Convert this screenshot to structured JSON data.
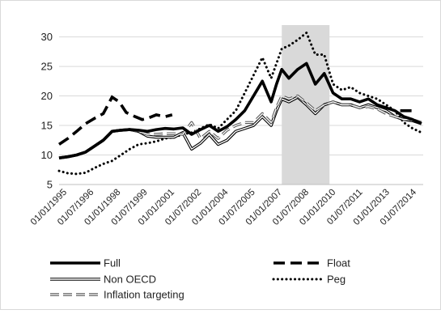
{
  "chart_data": {
    "type": "line",
    "ylim": [
      5,
      32
    ],
    "yticks": [
      5,
      10,
      15,
      20,
      25,
      30
    ],
    "x_tick_labels": [
      "01/01/1995",
      "01/07/1996",
      "01/01/1998",
      "01/07/1999",
      "01/01/2001",
      "01/07/2002",
      "01/01/2004",
      "01/07/2005",
      "01/01/2007",
      "01/07/2008",
      "01/01/2010",
      "01/07/2011",
      "01/01/2013",
      "01/07/2014"
    ],
    "x_range": [
      1995.0,
      2015.6
    ],
    "shaded_region": [
      2007.6,
      2010.3
    ],
    "legend_placement": "bottom",
    "series": [
      {
        "name": "Full",
        "style": "solid-thick",
        "x": [
          1995.0,
          1995.5,
          1996.0,
          1996.5,
          1997.0,
          1997.5,
          1998.0,
          1998.5,
          1999.0,
          1999.5,
          2000.0,
          2000.5,
          2001.0,
          2001.5,
          2002.0,
          2002.5,
          2003.0,
          2003.5,
          2004.0,
          2004.5,
          2005.0,
          2005.5,
          2006.0,
          2006.5,
          2007.0,
          2007.3,
          2007.6,
          2008.0,
          2008.5,
          2009.0,
          2009.5,
          2010.0,
          2010.5,
          2011.0,
          2011.5,
          2012.0,
          2012.5,
          2013.0,
          2013.5,
          2014.0,
          2014.5,
          2015.0,
          2015.5
        ],
        "values": [
          9.5,
          9.7,
          10.0,
          10.5,
          11.5,
          12.5,
          14.0,
          14.2,
          14.3,
          14.2,
          14.0,
          14.3,
          14.5,
          14.4,
          14.6,
          13.5,
          14.3,
          15.0,
          14.0,
          14.8,
          16.0,
          17.5,
          20.0,
          22.5,
          19.0,
          22.0,
          24.5,
          23.0,
          24.5,
          25.5,
          22.0,
          23.8,
          20.5,
          19.5,
          19.5,
          19.0,
          19.5,
          18.5,
          18.0,
          17.5,
          16.5,
          16.0,
          15.3
        ]
      },
      {
        "name": "Float",
        "style": "dashed-thick",
        "x": [
          1995.0,
          1995.5,
          1996.0,
          1996.5,
          1997.0,
          1997.5,
          1998.0,
          1998.4,
          1998.8,
          1999.3,
          1999.7,
          2000.0,
          2000.5,
          2001.0,
          2001.4
        ],
        "values": [
          11.8,
          12.8,
          14.0,
          15.3,
          16.2,
          17.0,
          19.8,
          19.0,
          17.2,
          16.5,
          16.0,
          16.2,
          16.8,
          16.5,
          16.8
        ],
        "x2": [
          2014.3,
          2014.7,
          2015.0
        ],
        "values2": [
          17.5,
          17.5,
          17.5
        ]
      },
      {
        "name": "Non OECD",
        "style": "double",
        "x": [
          1995.0,
          1995.5,
          1996.0,
          1996.5,
          1997.0,
          1997.5,
          1998.0,
          1998.5,
          1999.0,
          1999.5,
          2000.0,
          2000.5,
          2001.0,
          2001.5,
          2002.0,
          2002.5,
          2003.0,
          2003.5,
          2004.0,
          2004.5,
          2005.0,
          2005.5,
          2006.0,
          2006.5,
          2007.0,
          2007.3,
          2007.6,
          2008.0,
          2008.5,
          2009.0,
          2009.5,
          2010.0,
          2010.5,
          2011.0,
          2011.5,
          2012.0,
          2012.5,
          2013.0,
          2013.5,
          2014.0,
          2014.5,
          2015.0,
          2015.5
        ],
        "values": [
          9.5,
          9.7,
          10.0,
          10.5,
          11.5,
          12.5,
          14.0,
          14.2,
          14.3,
          14.0,
          13.2,
          13.0,
          13.0,
          13.0,
          13.8,
          11.0,
          12.0,
          13.5,
          11.8,
          12.5,
          14.0,
          14.5,
          15.0,
          16.5,
          15.0,
          17.5,
          19.5,
          19.0,
          19.8,
          18.5,
          17.0,
          18.5,
          19.0,
          18.5,
          18.5,
          18.0,
          18.5,
          18.0,
          17.5,
          16.5,
          16.0,
          15.8,
          15.3
        ]
      },
      {
        "name": "Peg",
        "style": "dotted",
        "x": [
          1995.0,
          1995.5,
          1996.0,
          1996.5,
          1997.0,
          1997.5,
          1998.0,
          1998.5,
          1999.0,
          1999.5,
          2000.0,
          2000.5,
          2001.0,
          2001.5,
          2002.0,
          2002.5,
          2003.0,
          2003.5,
          2004.0,
          2004.5,
          2005.0,
          2005.5,
          2006.0,
          2006.5,
          2007.0,
          2007.3,
          2007.6,
          2008.0,
          2008.5,
          2009.0,
          2009.5,
          2010.0,
          2010.5,
          2011.0,
          2011.5,
          2012.0,
          2012.5,
          2013.0,
          2013.5,
          2014.0,
          2014.5,
          2015.0,
          2015.5
        ],
        "values": [
          7.3,
          6.9,
          6.8,
          7.0,
          7.8,
          8.5,
          9.0,
          10.0,
          11.0,
          11.8,
          12.0,
          12.3,
          12.8,
          13.0,
          13.5,
          13.8,
          14.5,
          15.2,
          14.5,
          16.0,
          17.5,
          20.5,
          23.5,
          26.5,
          23.0,
          25.5,
          28.0,
          28.5,
          29.5,
          30.7,
          27.0,
          27.0,
          22.0,
          21.0,
          21.5,
          20.5,
          20.0,
          19.5,
          18.5,
          17.5,
          15.5,
          14.5,
          13.8
        ]
      },
      {
        "name": "Inflation targeting",
        "style": "double-dashed",
        "x": [
          1995.0,
          1995.5,
          1996.0,
          1996.5,
          1997.0,
          1997.5,
          1998.0,
          1998.5,
          1999.0,
          1999.5,
          2000.0,
          2000.5,
          2001.0,
          2001.5,
          2002.0,
          2002.5,
          2003.0,
          2003.5,
          2004.0,
          2004.5,
          2005.0,
          2005.5,
          2006.0,
          2006.5,
          2007.0,
          2007.3,
          2007.6,
          2008.0,
          2008.5,
          2009.0,
          2009.5,
          2010.0,
          2010.5,
          2011.0,
          2011.5,
          2012.0,
          2012.5,
          2013.0,
          2013.5,
          2014.0,
          2014.5,
          2015.0,
          2015.5
        ],
        "values": [
          9.5,
          9.7,
          10.0,
          10.5,
          11.5,
          12.5,
          14.0,
          14.2,
          14.3,
          14.0,
          13.5,
          13.5,
          13.6,
          13.6,
          13.5,
          15.5,
          12.8,
          14.0,
          12.8,
          14.2,
          15.0,
          15.5,
          15.5,
          17.0,
          15.5,
          18.0,
          20.0,
          19.5,
          20.0,
          18.8,
          17.5,
          18.5,
          19.0,
          18.5,
          18.5,
          18.0,
          18.2,
          17.8,
          17.0,
          16.5,
          16.0,
          16.0,
          15.5
        ]
      }
    ]
  }
}
